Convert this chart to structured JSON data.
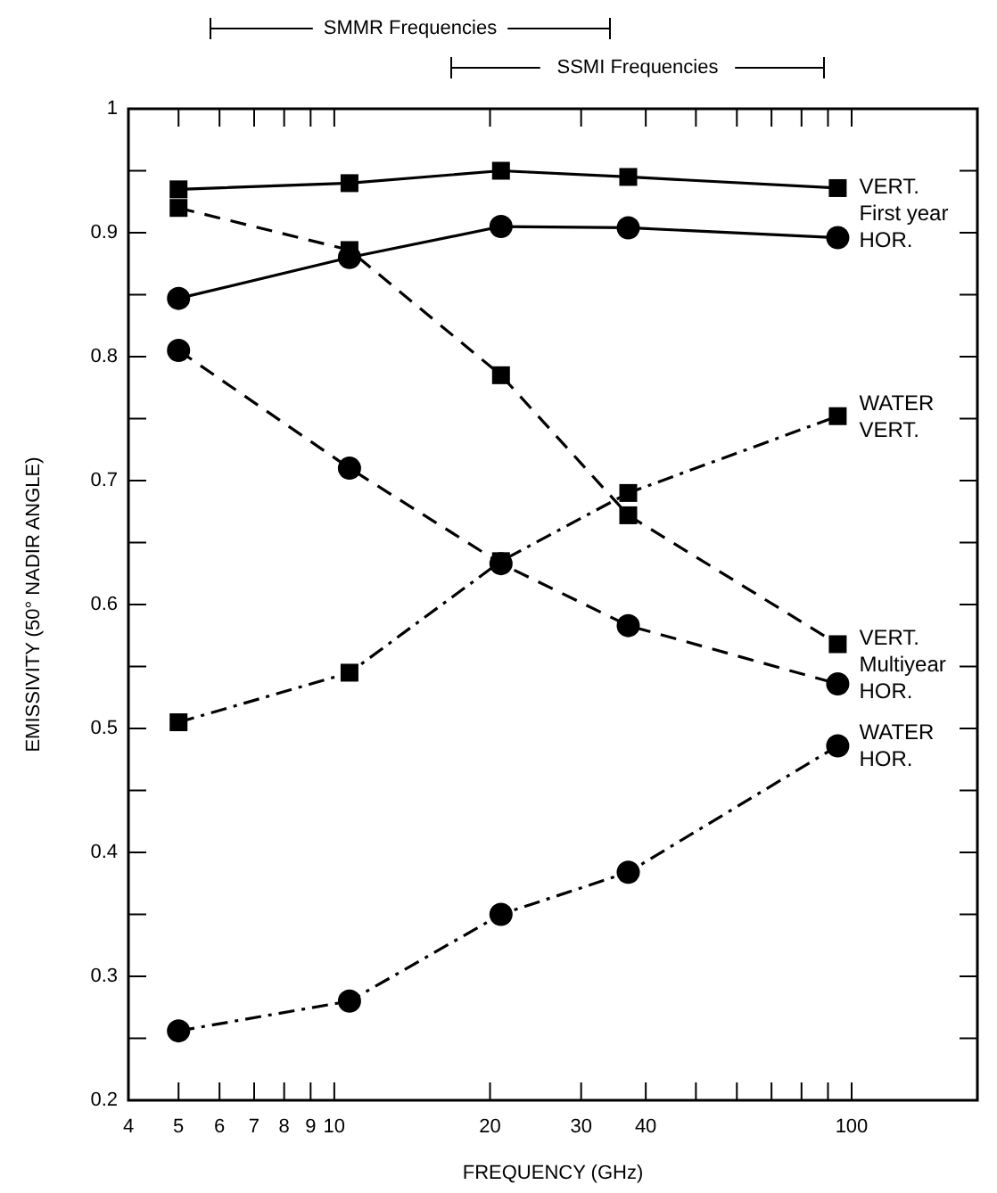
{
  "chart_data": {
    "type": "line",
    "xlabel": "FREQUENCY (GHz)",
    "ylabel": "EMISSIVITY (50° NADIR ANGLE)",
    "log": "x",
    "xlim": [
      4,
      175
    ],
    "xticks": [
      4,
      5,
      6,
      7,
      8,
      9,
      10,
      20,
      30,
      40,
      {
        "value": 50,
        "label": null
      },
      {
        "value": 60,
        "label": null
      },
      {
        "value": 70,
        "label": null
      },
      {
        "value": 80,
        "label": null
      },
      {
        "value": 90,
        "label": null
      },
      100
    ],
    "ylim": [
      0.2,
      1.0
    ],
    "yticks": [
      0.2,
      {
        "value": 0.25,
        "label": null
      },
      0.3,
      {
        "value": 0.35,
        "label": null
      },
      0.4,
      {
        "value": 0.45,
        "label": null
      },
      0.5,
      {
        "value": 0.55,
        "label": null
      },
      0.6,
      {
        "value": 0.65,
        "label": null
      },
      0.7,
      {
        "value": 0.75,
        "label": null
      },
      0.8,
      {
        "value": 0.85,
        "label": null
      },
      0.9,
      {
        "value": 0.95,
        "label": null
      },
      1.0
    ],
    "grid": false,
    "x": [
      5,
      10.7,
      21,
      37,
      94
    ],
    "series": [
      {
        "color": "#000000",
        "marker": "square",
        "line_style": "solid",
        "values": [
          0.935,
          0.94,
          0.95,
          0.945,
          0.936
        ]
      },
      {
        "color": "#000000",
        "marker": "circle",
        "line_style": "solid",
        "values": [
          0.847,
          0.88,
          0.905,
          0.904,
          0.896
        ]
      },
      {
        "color": "#000000",
        "marker": "square",
        "line_style": "dashed",
        "values": [
          0.92,
          0.886,
          0.785,
          0.672,
          0.568
        ]
      },
      {
        "color": "#000000",
        "marker": "circle",
        "line_style": "dashed",
        "values": [
          0.805,
          0.71,
          0.633,
          0.583,
          0.536
        ]
      },
      {
        "color": "#000000",
        "marker": "square",
        "line_style": "dashdot",
        "values": [
          0.505,
          0.545,
          0.635,
          0.69,
          0.752
        ]
      },
      {
        "color": "#000000",
        "marker": "circle",
        "line_style": "dashdot",
        "values": [
          0.256,
          0.28,
          0.35,
          0.384,
          0.486
        ]
      }
    ],
    "annotations": [
      "SMMR Frequencies",
      "SSMI Frequencies",
      "VERT.\nFirst year\nHOR.",
      "WATER\nVERT.",
      "VERT.\nMultiyear\nHOR.",
      "WATER\nHOR."
    ]
  }
}
